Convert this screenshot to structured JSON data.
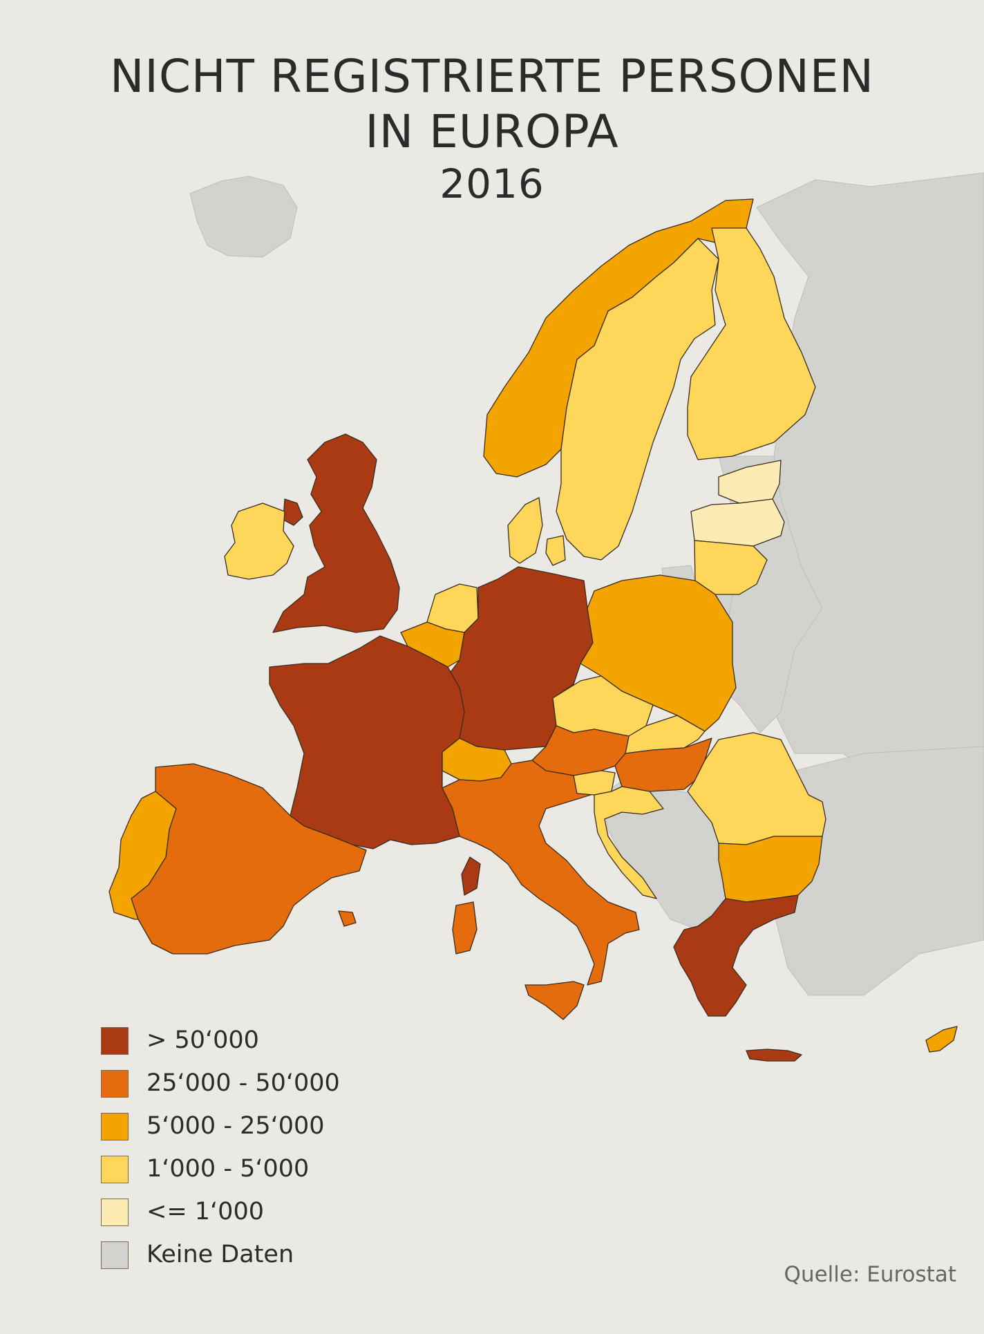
{
  "title": {
    "line1": "NICHT REGISTRIERTE PERSONEN",
    "line2": "IN EUROPA",
    "line3": "2016"
  },
  "colors": {
    "background": "#ebe9e4",
    "no_data": "#d2d2cf",
    "class_1": "#a93a14",
    "class_2": "#e56c0c",
    "class_3": "#f4a400",
    "class_4": "#fdd65a",
    "class_5": "#fdebb4"
  },
  "legend": [
    {
      "label": "> 50‘000",
      "color": "#a93a14"
    },
    {
      "label": "25‘000 - 50‘000",
      "color": "#e56c0c"
    },
    {
      "label": "5‘000 - 25‘000",
      "color": "#f4a400"
    },
    {
      "label": "1‘000 - 5‘000",
      "color": "#fdd65a"
    },
    {
      "label": "<= 1‘000",
      "color": "#fdebb4"
    },
    {
      "label": "Keine Daten",
      "color": "#d2d2cf"
    }
  ],
  "source": "Quelle: Eurostat",
  "map_data": {
    "type": "choropleth",
    "regions": [
      {
        "country": "United Kingdom",
        "class": "> 50‘000"
      },
      {
        "country": "France",
        "class": "> 50‘000"
      },
      {
        "country": "Germany",
        "class": "> 50‘000"
      },
      {
        "country": "Greece",
        "class": "> 50‘000"
      },
      {
        "country": "Spain",
        "class": "25‘000 - 50‘000"
      },
      {
        "country": "Italy",
        "class": "25‘000 - 50‘000"
      },
      {
        "country": "Austria",
        "class": "25‘000 - 50‘000"
      },
      {
        "country": "Hungary",
        "class": "25‘000 - 50‘000"
      },
      {
        "country": "Portugal",
        "class": "5‘000 - 25‘000"
      },
      {
        "country": "Norway",
        "class": "5‘000 - 25‘000"
      },
      {
        "country": "Belgium",
        "class": "5‘000 - 25‘000"
      },
      {
        "country": "Switzerland",
        "class": "5‘000 - 25‘000"
      },
      {
        "country": "Poland",
        "class": "5‘000 - 25‘000"
      },
      {
        "country": "Bulgaria",
        "class": "5‘000 - 25‘000"
      },
      {
        "country": "Cyprus",
        "class": "5‘000 - 25‘000"
      },
      {
        "country": "Ireland",
        "class": "1‘000 - 5‘000"
      },
      {
        "country": "Sweden",
        "class": "1‘000 - 5‘000"
      },
      {
        "country": "Finland",
        "class": "1‘000 - 5‘000"
      },
      {
        "country": "Denmark",
        "class": "1‘000 - 5‘000"
      },
      {
        "country": "Netherlands",
        "class": "1‘000 - 5‘000"
      },
      {
        "country": "Czech Republic",
        "class": "1‘000 - 5‘000"
      },
      {
        "country": "Slovakia",
        "class": "1‘000 - 5‘000"
      },
      {
        "country": "Slovenia",
        "class": "1‘000 - 5‘000"
      },
      {
        "country": "Croatia",
        "class": "1‘000 - 5‘000"
      },
      {
        "country": "Romania",
        "class": "1‘000 - 5‘000"
      },
      {
        "country": "Lithuania",
        "class": "1‘000 - 5‘000"
      },
      {
        "country": "Estonia",
        "class": "<= 1‘000"
      },
      {
        "country": "Latvia",
        "class": "<= 1‘000"
      },
      {
        "country": "Iceland",
        "class": "Keine Daten"
      },
      {
        "country": "Western Balkans",
        "class": "Keine Daten"
      },
      {
        "country": "Turkey",
        "class": "Keine Daten"
      },
      {
        "country": "Russia / Eastern Europe",
        "class": "Keine Daten"
      }
    ]
  }
}
